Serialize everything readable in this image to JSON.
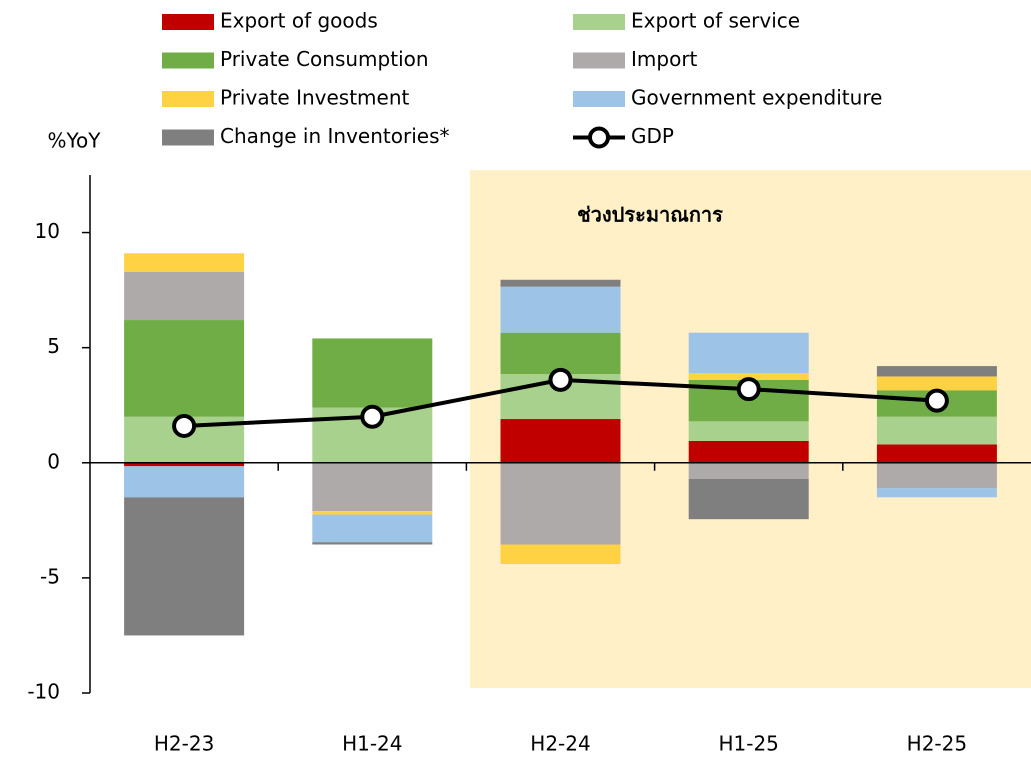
{
  "chart_data": {
    "type": "bar",
    "stacked": true,
    "y_label": "%YoY",
    "annotation": "ช่วงประมาณการ",
    "categories": [
      "H2-23",
      "H1-24",
      "H2-24",
      "H1-25",
      "H2-25"
    ],
    "series": [
      {
        "name": "Export of goods",
        "color": "#c00000",
        "values": [
          -0.15,
          0,
          1.9,
          0.95,
          0.8
        ]
      },
      {
        "name": "Export of service",
        "color": "#a9d18e",
        "values": [
          2.0,
          2.4,
          1.95,
          0.85,
          1.2
        ]
      },
      {
        "name": "Private Consumption",
        "color": "#70ad47",
        "values": [
          4.2,
          3.0,
          1.8,
          1.8,
          1.15
        ]
      },
      {
        "name": "Import",
        "color": "#aeaaaa",
        "values": [
          2.1,
          -2.1,
          -3.55,
          -0.7,
          -1.1
        ]
      },
      {
        "name": "Private Investment",
        "color": "#ffd243",
        "values": [
          0.8,
          -0.15,
          -0.85,
          0.3,
          0.6
        ]
      },
      {
        "name": "Government expenditure",
        "color": "#9dc3e6",
        "values": [
          -1.35,
          -1.2,
          2.0,
          1.75,
          -0.4
        ]
      },
      {
        "name": "Change in Inventories*",
        "color": "#7f7f7f",
        "values": [
          -6.0,
          -0.1,
          0.3,
          -1.75,
          0.45
        ]
      },
      {
        "name": "GDP",
        "color": "#000000",
        "type": "line",
        "values": [
          1.6,
          2.0,
          3.6,
          3.2,
          2.7
        ]
      }
    ],
    "ylim": [
      -10,
      12.5
    ],
    "yticks": [
      -10,
      -5,
      0,
      5,
      10
    ]
  }
}
